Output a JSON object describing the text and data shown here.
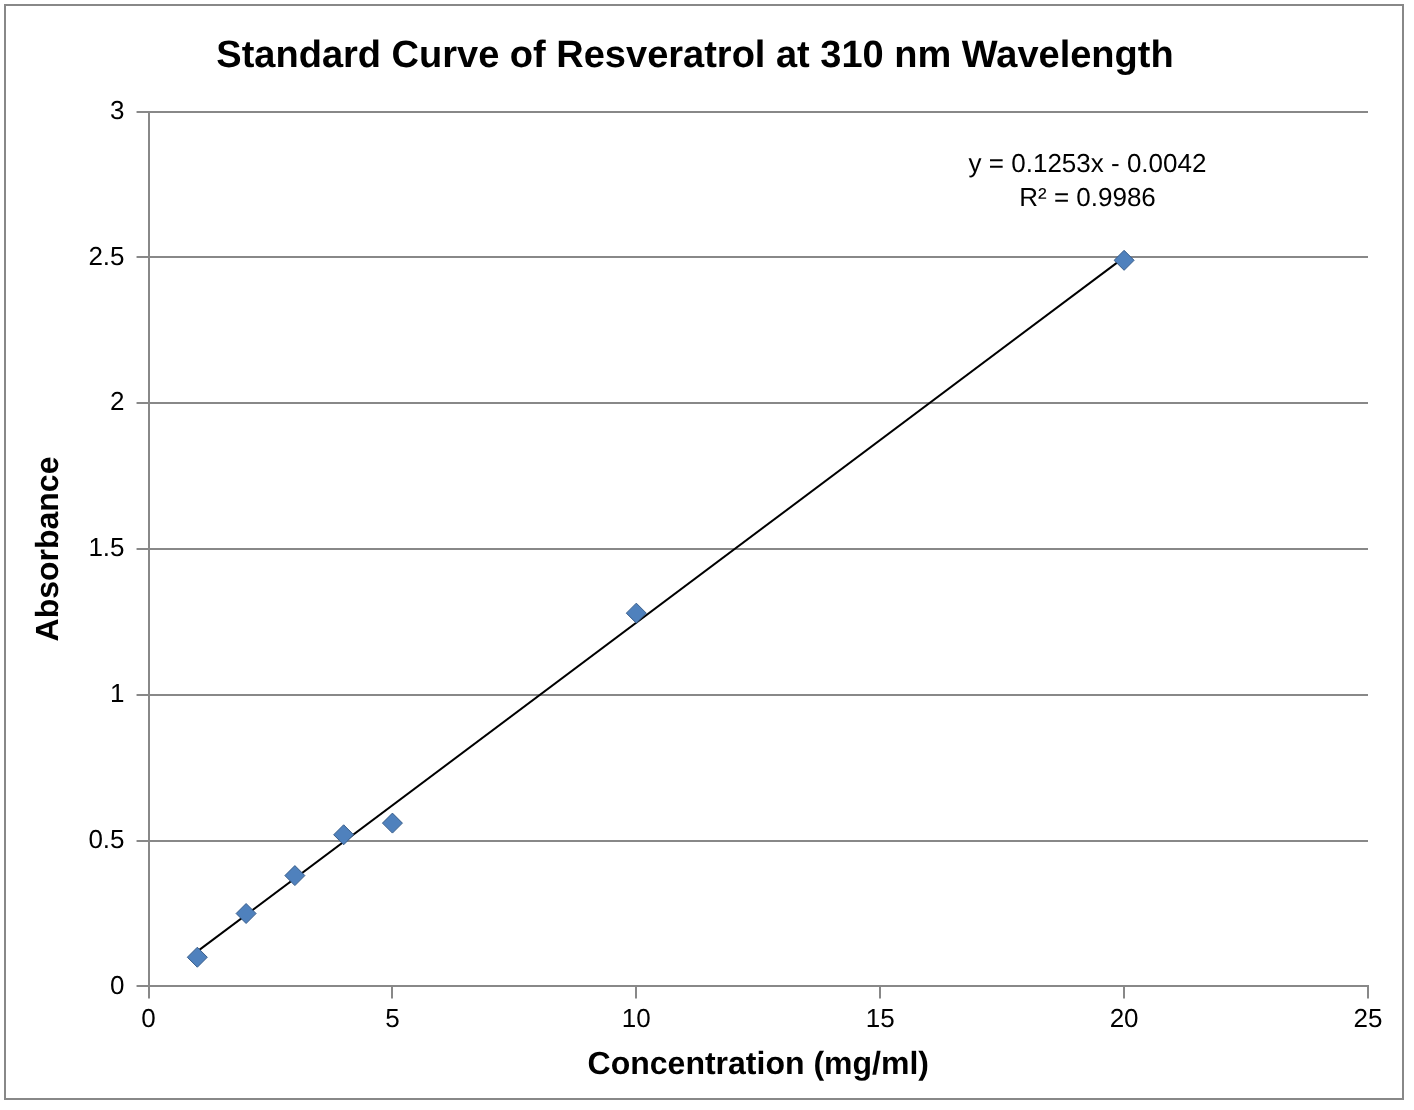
{
  "chart_data": {
    "type": "scatter",
    "title": "Standard Curve of Resveratrol at 310 nm Wavelength",
    "xlabel": "Concentration (mg/ml)",
    "ylabel": "Absorbance",
    "series": [
      {
        "type": "scatter",
        "color": "#4f81bd",
        "x": [
          1,
          2,
          3,
          4,
          5,
          10,
          20
        ],
        "values": [
          0.1,
          0.25,
          0.38,
          0.52,
          0.56,
          1.28,
          2.49
        ]
      },
      {
        "type": "line",
        "color": "#000000",
        "marker": "none",
        "x": [
          1,
          20
        ],
        "values": [
          0.12,
          2.5
        ]
      }
    ],
    "annotations": [
      "y = 0.1253x - 0.0042",
      "R² = 0.9986"
    ],
    "xlim": [
      0,
      25
    ],
    "xticks": [
      0,
      5,
      10,
      15,
      20,
      25
    ],
    "ylim": [
      0,
      3
    ],
    "yticks": [
      0,
      0.5,
      1,
      1.5,
      2,
      2.5,
      3
    ],
    "grid": "y",
    "legend": false,
    "marker": "diamond"
  }
}
